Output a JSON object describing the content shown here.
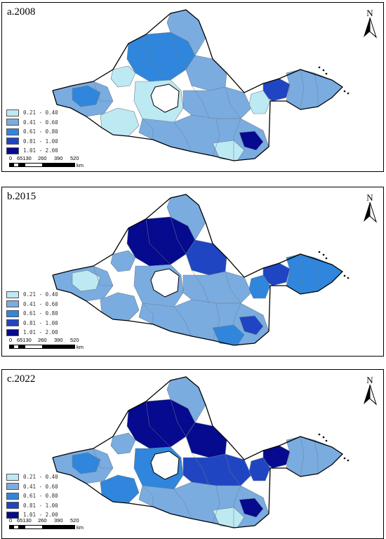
{
  "colors": {
    "c1": "#bde9f2",
    "c2": "#7aace0",
    "c3": "#2f86dc",
    "c4": "#1f45c2",
    "c5": "#050a8e"
  },
  "legend": [
    {
      "label": "0.21 - 0.40",
      "color": "#bde9f2"
    },
    {
      "label": "0.41 - 0.60",
      "color": "#7aace0"
    },
    {
      "label": "0.61 - 0.80",
      "color": "#2f86dc"
    },
    {
      "label": "0.81 - 1.00",
      "color": "#1f45c2"
    },
    {
      "label": "1.01 - 2.00",
      "color": "#050a8e"
    }
  ],
  "scale_bar": {
    "ticks": [
      "0",
      "65130",
      "260",
      "390",
      "520"
    ],
    "unit": "km"
  },
  "north_label": "N",
  "panels": [
    {
      "title": "a.2008",
      "region_classes": {
        "north": "c3",
        "northeast": "c2",
        "northwest_corner": "c1",
        "center_north": "c2",
        "center": "c1",
        "west_lobe": "c2",
        "west_inner": "c3",
        "east_shandong": "c2",
        "shandong_core": "c4",
        "south": "c2",
        "south_dark": "c5",
        "southeast": "c1",
        "central_east": "c2",
        "left_mid": "c1",
        "right_hook": "c1"
      }
    },
    {
      "title": "b.2015",
      "region_classes": {
        "north": "c5",
        "northeast": "c2",
        "northwest_corner": "c2",
        "center_north": "c4",
        "center": "c2",
        "west_lobe": "c2",
        "west_inner": "c1",
        "east_shandong": "c3",
        "shandong_core": "c4",
        "south": "c2",
        "south_dark": "c4",
        "southeast": "c3",
        "central_east": "c2",
        "left_mid": "c2",
        "right_hook": "c3"
      }
    },
    {
      "title": "c.2022",
      "region_classes": {
        "north": "c5",
        "northeast": "c2",
        "northwest_corner": "c2",
        "center_north": "c5",
        "center": "c3",
        "west_lobe": "c2",
        "west_inner": "c3",
        "east_shandong": "c2",
        "shandong_core": "c5",
        "south": "c2",
        "south_dark": "c5",
        "southeast": "c1",
        "central_east": "c4",
        "left_mid": "c3",
        "right_hook": "c4"
      }
    }
  ]
}
